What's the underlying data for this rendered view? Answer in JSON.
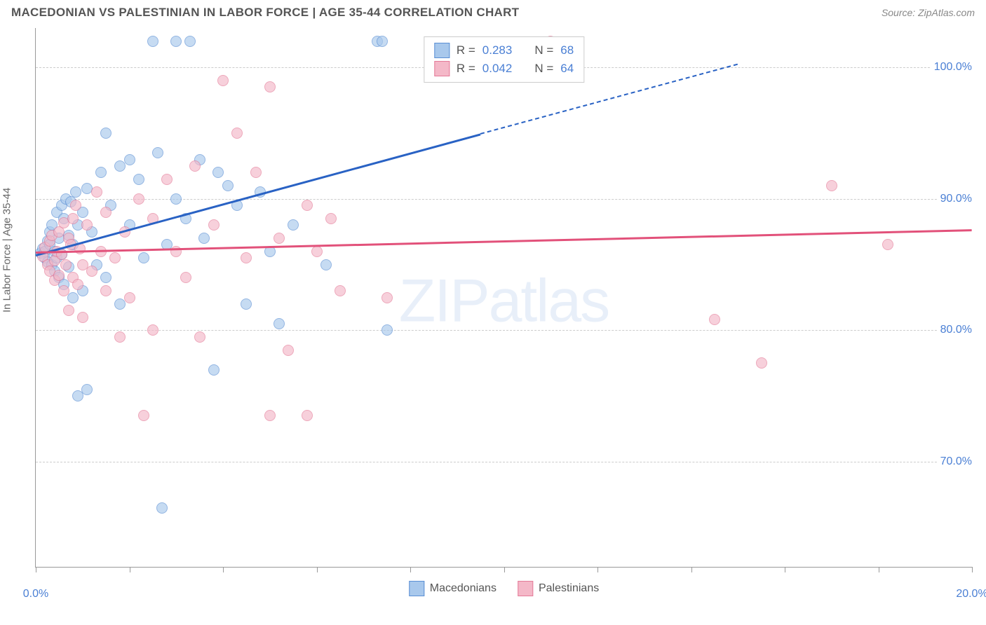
{
  "header": {
    "title": "MACEDONIAN VS PALESTINIAN IN LABOR FORCE | AGE 35-44 CORRELATION CHART",
    "source": "Source: ZipAtlas.com"
  },
  "chart": {
    "type": "scatter",
    "ylabel": "In Labor Force | Age 35-44",
    "xlim": [
      0,
      20
    ],
    "ylim": [
      62,
      103
    ],
    "xticks": [
      0,
      2,
      4,
      6,
      8,
      10,
      12,
      14,
      16,
      18,
      20
    ],
    "xtick_labels": {
      "0": "0.0%",
      "20": "20.0%"
    },
    "yticks": [
      70,
      80,
      90,
      100
    ],
    "ytick_labels": [
      "70.0%",
      "80.0%",
      "90.0%",
      "100.0%"
    ],
    "background_color": "#ffffff",
    "grid_color": "#cccccc",
    "axis_color": "#999999",
    "label_color": "#4a7fd4",
    "title_color": "#555555",
    "watermark": "ZIPatlas",
    "series": [
      {
        "name": "Macedonians",
        "fill": "#a8c8ec",
        "stroke": "#5a8fd4",
        "trend_color": "#2962c4",
        "R": "0.283",
        "N": "68",
        "trend": {
          "x1": 0,
          "y1": 85.8,
          "x2_solid": 9.5,
          "y2_solid": 95.0,
          "x2_dash": 15.0,
          "y2_dash": 100.3
        },
        "points": [
          [
            0.1,
            85.9
          ],
          [
            0.15,
            86.2
          ],
          [
            0.2,
            86.0
          ],
          [
            0.2,
            85.5
          ],
          [
            0.25,
            86.8
          ],
          [
            0.25,
            85.2
          ],
          [
            0.3,
            86.5
          ],
          [
            0.3,
            87.5
          ],
          [
            0.35,
            85.0
          ],
          [
            0.35,
            88.0
          ],
          [
            0.4,
            86.0
          ],
          [
            0.4,
            84.5
          ],
          [
            0.45,
            89.0
          ],
          [
            0.45,
            85.5
          ],
          [
            0.5,
            87.0
          ],
          [
            0.5,
            84.0
          ],
          [
            0.55,
            89.5
          ],
          [
            0.55,
            85.8
          ],
          [
            0.6,
            88.5
          ],
          [
            0.6,
            83.5
          ],
          [
            0.65,
            90.0
          ],
          [
            0.7,
            84.8
          ],
          [
            0.7,
            87.2
          ],
          [
            0.75,
            89.8
          ],
          [
            0.8,
            86.5
          ],
          [
            0.8,
            82.5
          ],
          [
            0.85,
            90.5
          ],
          [
            0.9,
            75.0
          ],
          [
            0.9,
            88.0
          ],
          [
            1.0,
            83.0
          ],
          [
            1.0,
            89.0
          ],
          [
            1.1,
            75.5
          ],
          [
            1.1,
            90.8
          ],
          [
            1.2,
            87.5
          ],
          [
            1.3,
            85.0
          ],
          [
            1.4,
            92.0
          ],
          [
            1.5,
            95.0
          ],
          [
            1.5,
            84.0
          ],
          [
            1.6,
            89.5
          ],
          [
            1.8,
            82.0
          ],
          [
            1.8,
            92.5
          ],
          [
            2.0,
            88.0
          ],
          [
            2.0,
            93.0
          ],
          [
            2.2,
            91.5
          ],
          [
            2.3,
            85.5
          ],
          [
            2.5,
            102.0
          ],
          [
            2.6,
            93.5
          ],
          [
            2.7,
            66.5
          ],
          [
            2.8,
            86.5
          ],
          [
            3.0,
            90.0
          ],
          [
            3.0,
            102.0
          ],
          [
            3.2,
            88.5
          ],
          [
            3.3,
            102.0
          ],
          [
            3.5,
            93.0
          ],
          [
            3.6,
            87.0
          ],
          [
            3.8,
            77.0
          ],
          [
            3.9,
            92.0
          ],
          [
            4.1,
            91.0
          ],
          [
            4.3,
            89.5
          ],
          [
            4.5,
            82.0
          ],
          [
            4.8,
            90.5
          ],
          [
            5.0,
            86.0
          ],
          [
            5.2,
            80.5
          ],
          [
            5.5,
            88.0
          ],
          [
            6.2,
            85.0
          ],
          [
            7.3,
            102.0
          ],
          [
            7.4,
            102.0
          ],
          [
            7.5,
            80.0
          ]
        ]
      },
      {
        "name": "Palestinians",
        "fill": "#f4b8c8",
        "stroke": "#e47a98",
        "trend_color": "#e2517a",
        "R": "0.042",
        "N": "64",
        "trend": {
          "x1": 0,
          "y1": 86.0,
          "x2_solid": 20,
          "y2_solid": 87.7,
          "x2_dash": 20,
          "y2_dash": 87.7
        },
        "points": [
          [
            0.15,
            85.6
          ],
          [
            0.2,
            86.3
          ],
          [
            0.25,
            85.0
          ],
          [
            0.3,
            86.8
          ],
          [
            0.3,
            84.5
          ],
          [
            0.35,
            87.2
          ],
          [
            0.4,
            85.3
          ],
          [
            0.4,
            83.8
          ],
          [
            0.45,
            86.0
          ],
          [
            0.5,
            84.2
          ],
          [
            0.5,
            87.5
          ],
          [
            0.55,
            85.8
          ],
          [
            0.6,
            88.2
          ],
          [
            0.6,
            83.0
          ],
          [
            0.65,
            85.0
          ],
          [
            0.7,
            87.0
          ],
          [
            0.7,
            81.5
          ],
          [
            0.75,
            86.5
          ],
          [
            0.8,
            88.5
          ],
          [
            0.8,
            84.0
          ],
          [
            0.85,
            89.5
          ],
          [
            0.9,
            83.5
          ],
          [
            0.95,
            86.2
          ],
          [
            1.0,
            85.0
          ],
          [
            1.0,
            81.0
          ],
          [
            1.1,
            88.0
          ],
          [
            1.2,
            84.5
          ],
          [
            1.3,
            90.5
          ],
          [
            1.4,
            86.0
          ],
          [
            1.5,
            83.0
          ],
          [
            1.5,
            89.0
          ],
          [
            1.7,
            85.5
          ],
          [
            1.8,
            79.5
          ],
          [
            1.9,
            87.5
          ],
          [
            2.0,
            82.5
          ],
          [
            2.2,
            90.0
          ],
          [
            2.3,
            73.5
          ],
          [
            2.5,
            88.5
          ],
          [
            2.5,
            80.0
          ],
          [
            2.8,
            91.5
          ],
          [
            3.0,
            86.0
          ],
          [
            3.2,
            84.0
          ],
          [
            3.4,
            92.5
          ],
          [
            3.5,
            79.5
          ],
          [
            3.8,
            88.0
          ],
          [
            4.0,
            99.0
          ],
          [
            4.3,
            95.0
          ],
          [
            4.5,
            85.5
          ],
          [
            4.7,
            92.0
          ],
          [
            5.0,
            98.5
          ],
          [
            5.0,
            73.5
          ],
          [
            5.2,
            87.0
          ],
          [
            5.4,
            78.5
          ],
          [
            5.8,
            73.5
          ],
          [
            5.8,
            89.5
          ],
          [
            6.0,
            86.0
          ],
          [
            6.3,
            88.5
          ],
          [
            6.5,
            83.0
          ],
          [
            7.5,
            82.5
          ],
          [
            11.0,
            102.0
          ],
          [
            14.5,
            80.8
          ],
          [
            15.5,
            77.5
          ],
          [
            17.0,
            91.0
          ],
          [
            18.2,
            86.5
          ]
        ]
      }
    ],
    "legend_bottom": [
      {
        "label": "Macedonians",
        "fill": "#a8c8ec",
        "stroke": "#5a8fd4"
      },
      {
        "label": "Palestinians",
        "fill": "#f4b8c8",
        "stroke": "#e47a98"
      }
    ]
  }
}
